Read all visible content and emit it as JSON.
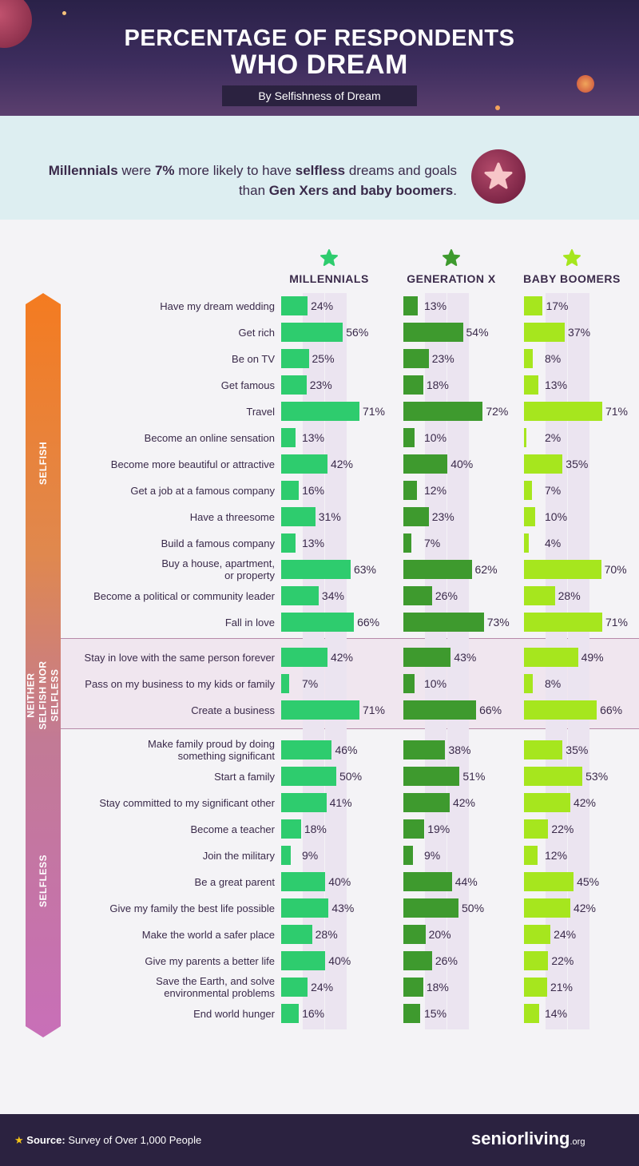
{
  "header": {
    "title_line1": "PERCENTAGE OF RESPONDENTS",
    "title_line2": "WHO DREAM",
    "subtitle": "By Selfishness of Dream"
  },
  "intro": {
    "parts": [
      {
        "t": "Millennials",
        "b": true
      },
      {
        "t": " were ",
        "b": false
      },
      {
        "t": "7%",
        "b": true
      },
      {
        "t": " more likely to have ",
        "b": false
      },
      {
        "t": "selfless",
        "b": true
      },
      {
        "t": " dreams and goals than ",
        "b": false
      },
      {
        "t": "Gen Xers and baby boomers",
        "b": true
      },
      {
        "t": ".",
        "b": false
      }
    ]
  },
  "chart_data": {
    "type": "bar",
    "orientation": "horizontal",
    "title": "Percentage of Respondents Who Dream",
    "subtitle": "By Selfishness of Dream",
    "series": [
      {
        "name": "MILLENNIALS",
        "color": "#2ecc6e"
      },
      {
        "name": "GENERATION X",
        "color": "#3e9a2e"
      },
      {
        "name": "BABY BOOMERS",
        "color": "#a6e61e"
      }
    ],
    "groups": [
      {
        "name": "SELFISH",
        "rows": [
          {
            "label": "Have my dream wedding",
            "values": [
              24,
              13,
              17
            ]
          },
          {
            "label": "Get rich",
            "values": [
              56,
              54,
              37
            ]
          },
          {
            "label": "Be on TV",
            "values": [
              25,
              23,
              8
            ]
          },
          {
            "label": "Get famous",
            "values": [
              23,
              18,
              13
            ]
          },
          {
            "label": "Travel",
            "values": [
              71,
              72,
              71
            ]
          },
          {
            "label": "Become an online sensation",
            "values": [
              13,
              10,
              2
            ]
          },
          {
            "label": "Become more beautiful or attractive",
            "values": [
              42,
              40,
              35
            ]
          },
          {
            "label": "Get a job at a famous company",
            "values": [
              16,
              12,
              7
            ]
          },
          {
            "label": "Have a threesome",
            "values": [
              31,
              23,
              10
            ]
          },
          {
            "label": "Build a famous company",
            "values": [
              13,
              7,
              4
            ]
          },
          {
            "label": "Buy a house, apartment, or property",
            "values": [
              63,
              62,
              70
            ]
          },
          {
            "label": "Become a political or community leader",
            "values": [
              34,
              26,
              28
            ]
          },
          {
            "label": "Fall in love",
            "values": [
              66,
              73,
              71
            ]
          }
        ]
      },
      {
        "name": "NEITHER SELFISH NOR SELFLESS",
        "rows": [
          {
            "label": "Stay in love with the same person forever",
            "values": [
              42,
              43,
              49
            ]
          },
          {
            "label": "Pass on my business to my kids or family",
            "values": [
              7,
              10,
              8
            ]
          },
          {
            "label": "Create a business",
            "values": [
              71,
              66,
              66
            ]
          }
        ]
      },
      {
        "name": "SELFLESS",
        "rows": [
          {
            "label": "Make family proud by doing something significant",
            "values": [
              46,
              38,
              35
            ]
          },
          {
            "label": "Start a family",
            "values": [
              50,
              51,
              53
            ]
          },
          {
            "label": "Stay committed to my significant other",
            "values": [
              41,
              42,
              42
            ]
          },
          {
            "label": "Become a teacher",
            "values": [
              18,
              19,
              22
            ]
          },
          {
            "label": "Join the military",
            "values": [
              9,
              9,
              12
            ]
          },
          {
            "label": "Be a great parent",
            "values": [
              40,
              44,
              45
            ]
          },
          {
            "label": "Give my family the best life possible",
            "values": [
              43,
              50,
              42
            ]
          },
          {
            "label": "Make the world a safer place",
            "values": [
              28,
              20,
              24
            ]
          },
          {
            "label": "Give my parents a better life",
            "values": [
              40,
              26,
              22
            ]
          },
          {
            "label": "Save the Earth, and solve environmental problems",
            "values": [
              24,
              18,
              21
            ]
          },
          {
            "label": "End world hunger",
            "values": [
              16,
              15,
              14
            ]
          }
        ]
      }
    ],
    "value_suffix": "%",
    "xlim": [
      0,
      100
    ]
  },
  "footer": {
    "source_label": "Source:",
    "source_text": "Survey of Over 1,000 People",
    "brand": "seniorliving",
    "brand_suffix": ".org"
  }
}
